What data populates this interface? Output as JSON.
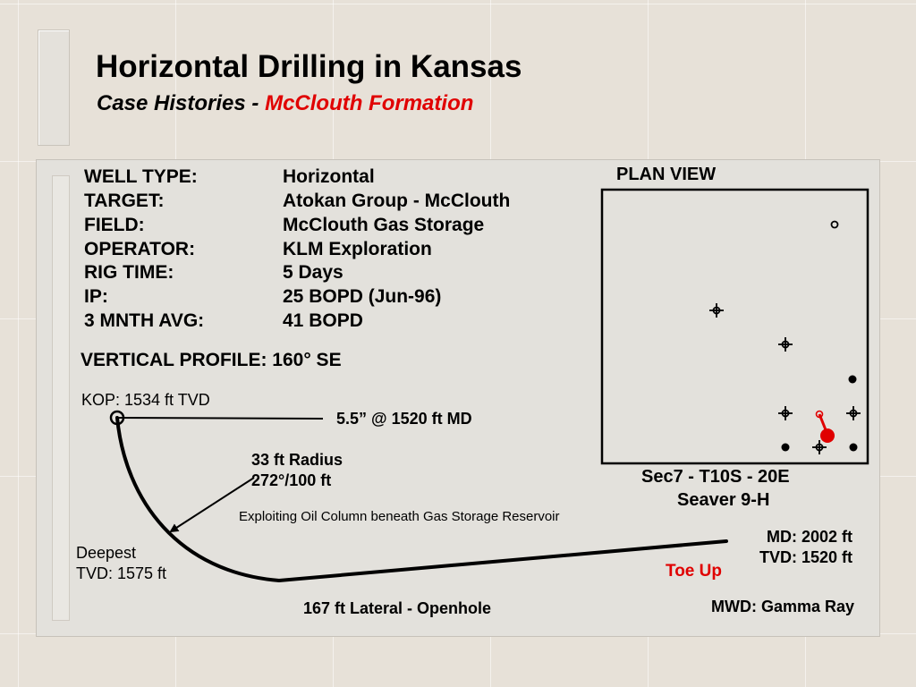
{
  "header": {
    "title": "Horizontal Drilling in Kansas",
    "subtitle_prefix": "Case Histories - ",
    "subtitle_highlight": "McClouth Formation"
  },
  "well_info": [
    {
      "label": "WELL TYPE:",
      "value": "Horizontal"
    },
    {
      "label": "TARGET:",
      "value": "Atokan Group - McClouth"
    },
    {
      "label": "FIELD:",
      "value": "McClouth Gas Storage"
    },
    {
      "label": "OPERATOR:",
      "value": "KLM Exploration"
    },
    {
      "label": "RIG TIME:",
      "value": "5 Days"
    },
    {
      "label": "IP:",
      "value": "25 BOPD (Jun-96)"
    },
    {
      "label": "3 MNTH AVG:",
      "value": "41 BOPD"
    }
  ],
  "profile": {
    "heading": "VERTICAL PROFILE: 160° SE",
    "kop": "KOP: 1534 ft TVD",
    "casing": "5.5” @ 1520 ft MD",
    "radius_line1": "33 ft Radius",
    "radius_line2": "272°/100 ft",
    "exploit_note": "Exploiting Oil Column beneath Gas Storage Reservoir",
    "deepest_line1": "Deepest",
    "deepest_line2": "TVD: 1575 ft",
    "md": "MD: 2002 ft",
    "tvd": "TVD: 1520 ft",
    "toe_up": "Toe Up",
    "lateral": "167 ft Lateral - Openhole",
    "mwd": "MWD: Gamma Ray"
  },
  "plan_view": {
    "title": "PLAN VIEW",
    "location": "Sec7 - T10S - 20E",
    "well_name": "Seaver 9-H"
  },
  "colors": {
    "highlight": "#e00000",
    "ink": "#000000"
  }
}
